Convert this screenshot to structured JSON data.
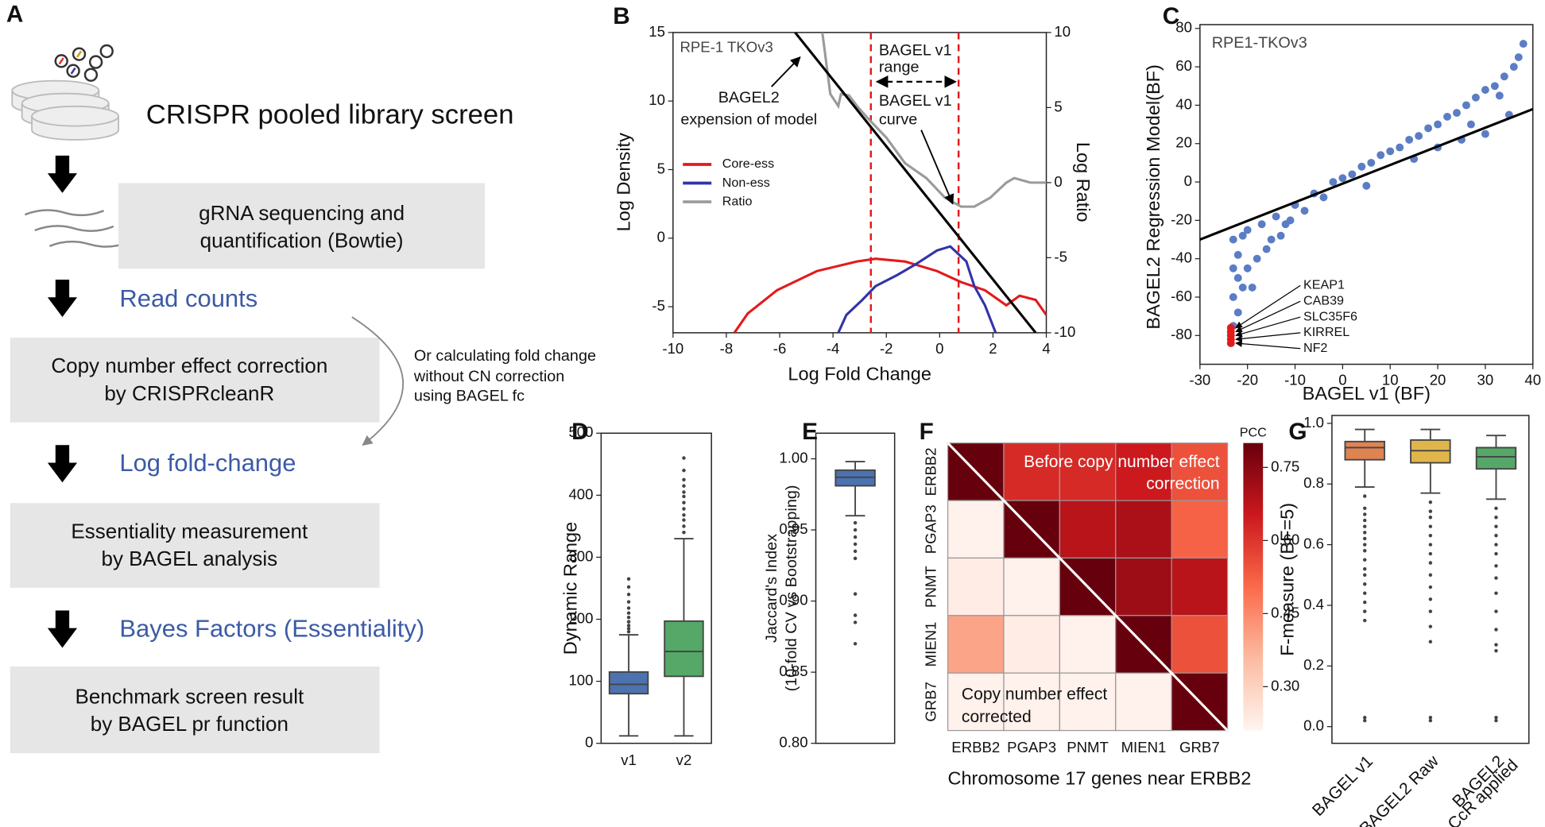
{
  "panel_a": {
    "label": "A",
    "title": "CRISPR pooled library screen",
    "steps": [
      [
        "gRNA sequencing and",
        "quantification (Bowtie)"
      ],
      [
        "Copy number effect correction",
        "by CRISPRcleanR"
      ],
      [
        "Essentiality measurement",
        "by BAGEL analysis"
      ],
      [
        "Benchmark screen result",
        "by BAGEL pr function"
      ]
    ],
    "outputs": [
      "Read counts",
      "Log fold-change",
      "Bayes Factors (Essentiality)"
    ],
    "side_note": [
      "Or calculating fold change",
      "without CN correction",
      "using BAGEL fc"
    ]
  },
  "chart_data": [
    {
      "type": "line",
      "panel": "B",
      "annotation": "RPE-1 TKOv3",
      "notes": [
        [
          "BAGEL2",
          "expension of model"
        ],
        [
          "BAGEL v1",
          "range"
        ],
        [
          "BAGEL v1",
          "curve"
        ]
      ],
      "x_label": "Log Fold Change",
      "y_label": "Log Density",
      "y2_label": "Log Ratio",
      "xlim": [
        -10,
        4
      ],
      "xticks": [
        -10,
        -8,
        -6,
        -4,
        -2,
        0,
        2,
        4
      ],
      "ylim": [
        -6.9,
        15
      ],
      "yticks": [
        -5,
        0,
        5,
        10,
        15
      ],
      "y2lim": [
        -10,
        10
      ],
      "y2ticks": [
        -10,
        -5,
        0,
        5,
        10
      ],
      "vlines": [
        -2.58,
        0.71
      ],
      "vline_color": "#e31a1c",
      "series": [
        {
          "name": "Core-ess",
          "color": "#e31a1c",
          "x": [
            -7.7,
            -7.2,
            -6.1,
            -4.6,
            -3.1,
            -2.4,
            -1.3,
            -0.1,
            0.8,
            1.7,
            2.5,
            3.0,
            3.6,
            4.0
          ],
          "values": [
            -6.9,
            -5.5,
            -3.8,
            -2.4,
            -1.7,
            -1.5,
            -1.7,
            -2.4,
            -3.2,
            -3.8,
            -4.9,
            -4.2,
            -4.5,
            -5.6
          ]
        },
        {
          "name": "Non-ess",
          "color": "#3333a8",
          "x": [
            -3.8,
            -3.5,
            -2.9,
            -2.4,
            -1.6,
            -0.9,
            -0.1,
            0.4,
            1.0,
            1.3,
            1.7,
            2.1
          ],
          "values": [
            -6.9,
            -5.6,
            -4.5,
            -3.5,
            -2.7,
            -1.9,
            -0.9,
            -0.6,
            -1.7,
            -3.5,
            -4.9,
            -6.9
          ]
        },
        {
          "name": "Ratio",
          "color": "#9a9a9a",
          "axis": "y2",
          "x": [
            -4.4,
            -4.1,
            -3.8,
            -3.7,
            -3.4,
            -3.1,
            -2.7,
            -2.0,
            -1.3,
            -0.5,
            0.2,
            0.8,
            1.3,
            1.9,
            2.5,
            2.8,
            3.4,
            4.0
          ],
          "values": [
            10,
            5.9,
            5.1,
            5.9,
            5.8,
            5.1,
            4.3,
            3.0,
            1.3,
            0.3,
            -1.0,
            -1.6,
            -1.6,
            -1.0,
            0.0,
            0.3,
            0.0,
            0.0
          ]
        }
      ],
      "fit": {
        "color": "#000000",
        "axis": "y2",
        "x": [
          -5.42,
          3.6
        ],
        "values": [
          10,
          -10
        ]
      }
    },
    {
      "type": "scatter",
      "panel": "C",
      "annotation": "RPE1-TKOv3",
      "x_label": "BAGEL v1 (BF)",
      "y_label": "BAGEL2 Regression Model(BF)",
      "xlim": [
        -30,
        40
      ],
      "xticks": [
        -30,
        -20,
        -10,
        0,
        10,
        20,
        30,
        40
      ],
      "ylim": [
        -95,
        82
      ],
      "yticks": [
        -80,
        -60,
        -40,
        -20,
        0,
        20,
        40,
        60,
        80
      ],
      "color": "#5b7dc4",
      "x": [
        -23,
        -23,
        -23,
        -23,
        -22,
        -22,
        -22,
        -21,
        -21,
        -20,
        -20,
        -18,
        -17,
        -15,
        -14,
        -12,
        -10,
        -8,
        -6,
        -4,
        -2,
        0,
        2,
        4,
        6,
        8,
        10,
        12,
        14,
        16,
        18,
        20,
        22,
        24,
        26,
        28,
        30,
        32,
        34,
        36,
        37,
        38,
        30,
        25,
        20,
        35,
        -19,
        -16,
        -13,
        -11,
        5,
        15,
        27,
        33
      ],
      "values": [
        -75,
        -60,
        -45,
        -30,
        -68,
        -50,
        -38,
        -55,
        -28,
        -45,
        -25,
        -40,
        -22,
        -30,
        -18,
        -22,
        -12,
        -15,
        -6,
        -8,
        0,
        2,
        4,
        8,
        10,
        14,
        16,
        18,
        22,
        24,
        28,
        30,
        34,
        36,
        40,
        44,
        48,
        50,
        55,
        60,
        65,
        72,
        25,
        22,
        18,
        35,
        -55,
        -35,
        -28,
        -20,
        -2,
        12,
        30,
        45
      ],
      "highlight": {
        "color": "#e31a1c",
        "labels": [
          "KEAP1",
          "CAB39",
          "SLC35F6",
          "KIRREL",
          "NF2"
        ],
        "x": [
          -23.5,
          -23.5,
          -23.5,
          -23.5,
          -23.5
        ],
        "values": [
          -76,
          -78,
          -80,
          -82,
          -84
        ]
      },
      "fit": {
        "color": "#000000",
        "x": [
          -30,
          40
        ],
        "values": [
          -30,
          38
        ]
      }
    },
    {
      "type": "box",
      "panel": "D",
      "y_label": "Dynamic Range",
      "categories": [
        [
          "v1"
        ],
        [
          "v2"
        ]
      ],
      "ylim": [
        0,
        500
      ],
      "yticks": [
        0,
        100,
        200,
        300,
        400,
        500
      ],
      "boxes": [
        {
          "color": "#4c72b0",
          "whislo": 12,
          "q1": 80,
          "med": 95,
          "q3": 115,
          "whishi": 175,
          "fliers": [
            180,
            185,
            190,
            196,
            203,
            210,
            218,
            228,
            240,
            252,
            265
          ]
        },
        {
          "color": "#55a868",
          "whislo": 12,
          "q1": 108,
          "med": 148,
          "q3": 197,
          "whishi": 330,
          "fliers": [
            340,
            350,
            360,
            368,
            378,
            388,
            398,
            405,
            415,
            425,
            440,
            460
          ]
        }
      ]
    },
    {
      "type": "box",
      "panel": "E",
      "y_label": [
        "Jaccard's Index",
        "(10-fold CV vs Bootstrapping)"
      ],
      "categories": [],
      "ylim": [
        0.8,
        1.018
      ],
      "yticks": [
        {
          "value": 0.8,
          "label": "0.80"
        },
        0.85,
        {
          "value": 0.9,
          "label": "0.90"
        },
        0.95,
        {
          "value": 1,
          "label": "1.00"
        }
      ],
      "boxes": [
        {
          "color": "#4c72b0",
          "whislo": 0.96,
          "q1": 0.981,
          "med": 0.987,
          "q3": 0.992,
          "whishi": 0.998,
          "fliers": [
            0.955,
            0.95,
            0.945,
            0.94,
            0.935,
            0.93,
            0.905,
            0.89,
            0.885,
            0.87
          ]
        }
      ]
    },
    {
      "type": "heatmap",
      "panel": "F",
      "x_label": "Chromosome 17 genes near ERBB2",
      "upper_note": [
        "Before copy number effect",
        "correction"
      ],
      "lower_note": [
        "Copy number effect",
        "corrected"
      ],
      "categories": [
        "ERBB2",
        "PGAP3",
        "PNMT",
        "MIEN1",
        "GRB7"
      ],
      "values": [
        [
          0.8,
          0.62,
          0.62,
          0.65,
          0.55
        ],
        [
          0.22,
          0.8,
          0.68,
          0.7,
          0.52
        ],
        [
          0.23,
          0.22,
          0.8,
          0.72,
          0.68
        ],
        [
          0.4,
          0.23,
          0.22,
          0.8,
          0.55
        ],
        [
          0.22,
          0.22,
          0.22,
          0.22,
          0.8
        ]
      ],
      "colorbar_label": "PCC",
      "clim": [
        0.21,
        0.8
      ],
      "cticks": [
        {
          "value": 0.3,
          "label": "0.30"
        },
        0.45,
        {
          "value": 0.6,
          "label": "0.60"
        },
        0.75
      ],
      "colormap": [
        "#fff5f0",
        "#fcbba1",
        "#fb6a4a",
        "#cb181d",
        "#67000d"
      ]
    },
    {
      "type": "box",
      "panel": "G",
      "y_label": "F-measure (BF=5)",
      "categories": [
        [
          "BAGEL v1"
        ],
        [
          "BAGEL2 Raw"
        ],
        [
          "BAGEL2",
          "CcR applied"
        ]
      ],
      "ylim": [
        -0.055,
        1.026
      ],
      "yticks": [
        {
          "value": 0,
          "label": "0.0"
        },
        0.2,
        0.4,
        0.6,
        0.8,
        {
          "value": 1,
          "label": "1.0"
        }
      ],
      "boxes": [
        {
          "color": "#dd8452",
          "whislo": 0.79,
          "q1": 0.88,
          "med": 0.92,
          "q3": 0.94,
          "whishi": 0.98,
          "fliers": [
            0.76,
            0.72,
            0.7,
            0.68,
            0.66,
            0.64,
            0.62,
            0.6,
            0.58,
            0.55,
            0.52,
            0.5,
            0.47,
            0.44,
            0.41,
            0.38,
            0.35,
            0.03,
            0.02
          ]
        },
        {
          "color": "#e0b64b",
          "whislo": 0.77,
          "q1": 0.87,
          "med": 0.91,
          "q3": 0.945,
          "whishi": 0.98,
          "fliers": [
            0.74,
            0.71,
            0.69,
            0.66,
            0.63,
            0.6,
            0.57,
            0.54,
            0.5,
            0.46,
            0.42,
            0.38,
            0.33,
            0.28,
            0.03,
            0.02
          ]
        },
        {
          "color": "#55a868",
          "whislo": 0.75,
          "q1": 0.85,
          "med": 0.89,
          "q3": 0.92,
          "whishi": 0.96,
          "fliers": [
            0.72,
            0.69,
            0.66,
            0.63,
            0.6,
            0.57,
            0.53,
            0.49,
            0.44,
            0.38,
            0.32,
            0.27,
            0.25,
            0.03,
            0.02
          ]
        }
      ]
    }
  ]
}
